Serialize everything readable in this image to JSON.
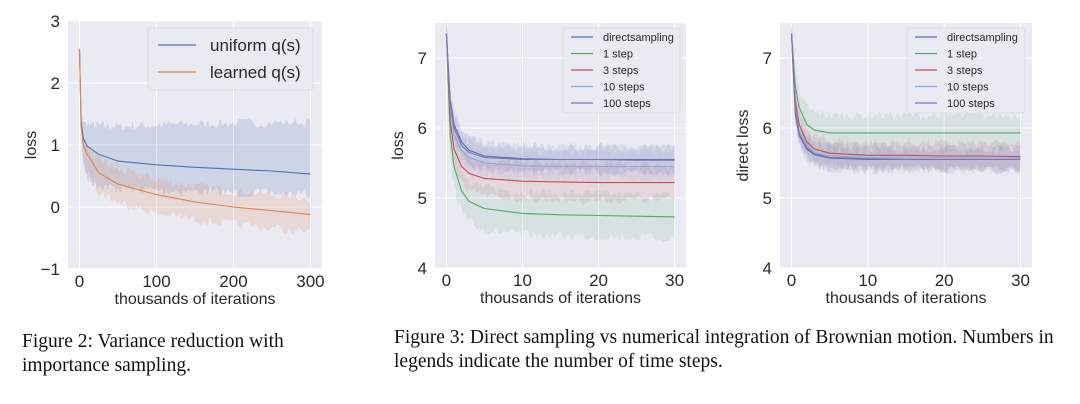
{
  "colors": {
    "background": "#eaeaf2",
    "grid": "#ffffff"
  },
  "chart_data": [
    {
      "type": "line",
      "id": "figure-2-plot",
      "xlabel": "thousands of iterations",
      "ylabel": "loss",
      "xlim": [
        -15,
        315
      ],
      "ylim": [
        -1,
        3
      ],
      "xticks": [
        0,
        100,
        200,
        300
      ],
      "yticks": [
        -1,
        0,
        1,
        2,
        3
      ],
      "ytick_labels": [
        "−1",
        "0",
        "1",
        "2",
        "3"
      ],
      "grid": true,
      "legend_placement": "top-right",
      "x": [
        0,
        2,
        5,
        10,
        25,
        50,
        100,
        150,
        200,
        250,
        300
      ],
      "series": [
        {
          "name": "uniform q(s)",
          "color": "#4c72b0",
          "y": [
            2.55,
            1.4,
            1.1,
            0.98,
            0.85,
            0.74,
            0.68,
            0.64,
            0.61,
            0.58,
            0.53
          ],
          "upper": [
            2.55,
            1.5,
            1.35,
            1.33,
            1.32,
            1.3,
            1.32,
            1.34,
            1.35,
            1.36,
            1.37
          ],
          "lower": [
            2.55,
            1.2,
            0.7,
            0.45,
            0.35,
            0.3,
            0.27,
            0.25,
            0.23,
            0.22,
            0.2
          ]
        },
        {
          "name": "learned q(s)",
          "color": "#dd8452",
          "y": [
            2.55,
            1.3,
            1.0,
            0.85,
            0.55,
            0.37,
            0.2,
            0.08,
            0.0,
            -0.06,
            -0.12
          ],
          "upper": [
            2.55,
            1.45,
            1.15,
            1.0,
            0.78,
            0.6,
            0.45,
            0.33,
            0.26,
            0.2,
            0.14
          ],
          "lower": [
            2.55,
            1.1,
            0.75,
            0.55,
            0.25,
            0.08,
            -0.1,
            -0.2,
            -0.28,
            -0.34,
            -0.42
          ]
        }
      ]
    },
    {
      "type": "line",
      "id": "figure-3-left-plot",
      "xlabel": "thousands of iterations",
      "ylabel": "loss",
      "xlim": [
        -1.5,
        31.5
      ],
      "ylim": [
        4,
        7.5
      ],
      "xticks": [
        0,
        10,
        20,
        30
      ],
      "yticks": [
        4,
        5,
        6,
        7
      ],
      "ytick_labels": [
        "4",
        "5",
        "6",
        "7"
      ],
      "grid": true,
      "legend_placement": "top-right",
      "x": [
        0,
        0.5,
        1,
        2,
        3,
        5,
        10,
        15,
        20,
        25,
        30
      ],
      "series": [
        {
          "name": "directsampling",
          "color": "#4c72b0",
          "band": 0.18,
          "y": [
            7.35,
            6.4,
            6.05,
            5.8,
            5.68,
            5.6,
            5.56,
            5.55,
            5.55,
            5.55,
            5.55
          ]
        },
        {
          "name": "1 step",
          "color": "#55a868",
          "band": 0.3,
          "y": [
            7.35,
            5.9,
            5.45,
            5.1,
            4.95,
            4.85,
            4.78,
            4.76,
            4.75,
            4.74,
            4.73
          ]
        },
        {
          "name": "3 steps",
          "color": "#c44e52",
          "band": 0.25,
          "y": [
            7.35,
            6.1,
            5.7,
            5.45,
            5.35,
            5.28,
            5.24,
            5.23,
            5.22,
            5.22,
            5.22
          ]
        },
        {
          "name": "10 steps",
          "color": "#8fa8d8",
          "band": 0.2,
          "y": [
            7.35,
            6.3,
            5.9,
            5.68,
            5.58,
            5.5,
            5.46,
            5.45,
            5.45,
            5.45,
            5.45
          ]
        },
        {
          "name": "100 steps",
          "color": "#8172b2",
          "band": 0.18,
          "y": [
            7.35,
            6.35,
            6.0,
            5.75,
            5.65,
            5.58,
            5.55,
            5.55,
            5.55,
            5.54,
            5.54
          ]
        }
      ]
    },
    {
      "type": "line",
      "id": "figure-3-right-plot",
      "xlabel": "thousands of iterations",
      "ylabel": "direct loss",
      "xlim": [
        -1.5,
        31.5
      ],
      "ylim": [
        4,
        7.5
      ],
      "xticks": [
        0,
        10,
        20,
        30
      ],
      "yticks": [
        4,
        5,
        6,
        7
      ],
      "ytick_labels": [
        "4",
        "5",
        "6",
        "7"
      ],
      "grid": true,
      "legend_placement": "top-right",
      "x": [
        0,
        0.5,
        1,
        2,
        3,
        5,
        10,
        15,
        20,
        25,
        30
      ],
      "series": [
        {
          "name": "directsampling",
          "color": "#4c72b0",
          "band": 0.15,
          "y": [
            7.35,
            6.2,
            5.9,
            5.7,
            5.62,
            5.57,
            5.55,
            5.55,
            5.55,
            5.55,
            5.55
          ]
        },
        {
          "name": "1 step",
          "color": "#55a868",
          "band": 0.25,
          "y": [
            7.35,
            6.6,
            6.3,
            6.05,
            5.97,
            5.93,
            5.93,
            5.93,
            5.93,
            5.93,
            5.93
          ]
        },
        {
          "name": "3 steps",
          "color": "#c44e52",
          "band": 0.18,
          "y": [
            7.35,
            6.4,
            6.05,
            5.8,
            5.7,
            5.64,
            5.61,
            5.61,
            5.6,
            5.6,
            5.59
          ]
        },
        {
          "name": "10 steps",
          "color": "#8fa8d8",
          "band": 0.16,
          "y": [
            7.35,
            6.3,
            5.95,
            5.75,
            5.65,
            5.6,
            5.58,
            5.57,
            5.57,
            5.57,
            5.57
          ]
        },
        {
          "name": "100 steps",
          "color": "#8172b2",
          "band": 0.16,
          "y": [
            7.35,
            6.25,
            5.92,
            5.72,
            5.63,
            5.58,
            5.56,
            5.55,
            5.55,
            5.55,
            5.55
          ]
        }
      ]
    }
  ],
  "captions": {
    "figure2_label": "Figure 2:",
    "figure2_text": "Variance reduction with importance sampling.",
    "figure3_label": "Figure 3:",
    "figure3_text": "Direct sampling vs numerical integration of Brownian motion. Numbers in legends indicate the number of time steps."
  }
}
